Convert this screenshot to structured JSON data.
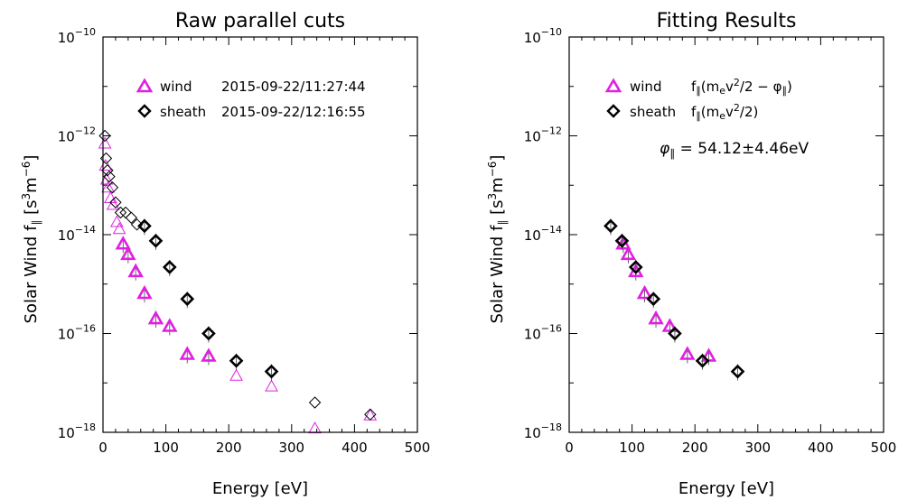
{
  "chart_data": [
    {
      "type": "scatter",
      "title": "Raw parallel cuts",
      "xlabel": "Energy [eV]",
      "ylabel": "Solar Wind f∥ [s³m⁻⁶]",
      "xlim": [
        0,
        500
      ],
      "ylim": [
        1e-18,
        1e-10
      ],
      "y_scale": "log",
      "grid": false,
      "legend_position": "top-right",
      "x_ticks": [
        "0",
        "100",
        "200",
        "300",
        "400",
        "500"
      ],
      "y_ticks": [
        {
          "base": "10",
          "exp": "−10",
          "value": 1e-10
        },
        {
          "base": "10",
          "exp": "−12",
          "value": 1e-12
        },
        {
          "base": "10",
          "exp": "−14",
          "value": 1e-14
        },
        {
          "base": "10",
          "exp": "−16",
          "value": 1e-16
        },
        {
          "base": "10",
          "exp": "−18",
          "value": 1e-18
        }
      ],
      "series": [
        {
          "name": "wind",
          "label_time": "2015-09-22/11:27:44",
          "marker": "triangle",
          "color": "#e020e0",
          "points": [
            {
              "x": 3,
              "y": 7e-13,
              "bold": false
            },
            {
              "x": 4,
              "y": 2.5e-13,
              "bold": false
            },
            {
              "x": 6,
              "y": 1.3e-13,
              "bold": false
            },
            {
              "x": 8,
              "y": 9e-14,
              "bold": false
            },
            {
              "x": 12,
              "y": 5.5e-14,
              "bold": false
            },
            {
              "x": 16,
              "y": 4e-14,
              "bold": false
            },
            {
              "x": 22,
              "y": 1.8e-14,
              "bold": false
            },
            {
              "x": 26,
              "y": 1.3e-14,
              "bold": false
            },
            {
              "x": 32,
              "y": 6.5e-15,
              "bold": true
            },
            {
              "x": 40,
              "y": 4e-15,
              "bold": true
            },
            {
              "x": 52,
              "y": 1.8e-15,
              "bold": true
            },
            {
              "x": 66,
              "y": 6.5e-16,
              "bold": true
            },
            {
              "x": 84,
              "y": 2e-16,
              "bold": true
            },
            {
              "x": 106,
              "y": 1.4e-16,
              "bold": true
            },
            {
              "x": 134,
              "y": 3.8e-17,
              "bold": true
            },
            {
              "x": 168,
              "y": 3.5e-17,
              "bold": true
            },
            {
              "x": 212,
              "y": 1.4e-17,
              "bold": false
            },
            {
              "x": 268,
              "y": 8.5e-18,
              "bold": false
            },
            {
              "x": 337,
              "y": 1.2e-18,
              "bold": false
            },
            {
              "x": 425,
              "y": 2.2e-18,
              "bold": false
            }
          ]
        },
        {
          "name": "sheath",
          "label_time": "2015-09-22/12:16:55",
          "marker": "diamond",
          "color": "#000000",
          "points": [
            {
              "x": 3,
              "y": 1e-12,
              "bold": false
            },
            {
              "x": 5,
              "y": 3.5e-13,
              "bold": false
            },
            {
              "x": 7,
              "y": 2e-13,
              "bold": false
            },
            {
              "x": 10,
              "y": 1.5e-13,
              "bold": false
            },
            {
              "x": 15,
              "y": 9e-14,
              "bold": false
            },
            {
              "x": 20,
              "y": 4.5e-14,
              "bold": false
            },
            {
              "x": 28,
              "y": 2.8e-14,
              "bold": false
            },
            {
              "x": 36,
              "y": 2.8e-14,
              "bold": false
            },
            {
              "x": 45,
              "y": 2.2e-14,
              "bold": false
            },
            {
              "x": 54,
              "y": 1.6e-14,
              "bold": false
            },
            {
              "x": 66,
              "y": 1.5e-14,
              "bold": true
            },
            {
              "x": 84,
              "y": 7.5e-15,
              "bold": true
            },
            {
              "x": 106,
              "y": 2.2e-15,
              "bold": true
            },
            {
              "x": 134,
              "y": 5e-16,
              "bold": true
            },
            {
              "x": 168,
              "y": 1e-16,
              "bold": true
            },
            {
              "x": 212,
              "y": 2.8e-17,
              "bold": true
            },
            {
              "x": 268,
              "y": 1.7e-17,
              "bold": true
            },
            {
              "x": 337,
              "y": 4e-18,
              "bold": false
            },
            {
              "x": 425,
              "y": 2.3e-18,
              "bold": false
            }
          ]
        }
      ]
    },
    {
      "type": "scatter",
      "title": "Fitting Results",
      "xlabel": "Energy [eV]",
      "ylabel": "Solar Wind f∥ [s³m⁻⁶]",
      "xlim": [
        0,
        500
      ],
      "ylim": [
        1e-18,
        1e-10
      ],
      "y_scale": "log",
      "grid": false,
      "legend_position": "top-right",
      "annotation": "φ∥ = 54.12±4.46eV",
      "x_ticks": [
        "0",
        "100",
        "200",
        "300",
        "400",
        "500"
      ],
      "y_ticks": [
        {
          "base": "10",
          "exp": "−10",
          "value": 1e-10
        },
        {
          "base": "10",
          "exp": "−12",
          "value": 1e-12
        },
        {
          "base": "10",
          "exp": "−14",
          "value": 1e-14
        },
        {
          "base": "10",
          "exp": "−16",
          "value": 1e-16
        },
        {
          "base": "10",
          "exp": "−18",
          "value": 1e-18
        }
      ],
      "series": [
        {
          "name": "wind",
          "label_formula": "f∥(mev²/2 − φ∥)",
          "marker": "triangle",
          "color": "#e020e0",
          "points": [
            {
              "x": 86,
              "y": 6.5e-15,
              "bold": true
            },
            {
              "x": 94,
              "y": 4e-15,
              "bold": true
            },
            {
              "x": 106,
              "y": 1.8e-15,
              "bold": true
            },
            {
              "x": 120,
              "y": 6.5e-16,
              "bold": true
            },
            {
              "x": 138,
              "y": 2e-16,
              "bold": true
            },
            {
              "x": 160,
              "y": 1.4e-16,
              "bold": true
            },
            {
              "x": 188,
              "y": 3.8e-17,
              "bold": true
            },
            {
              "x": 222,
              "y": 3.5e-17,
              "bold": true
            }
          ]
        },
        {
          "name": "sheath",
          "label_formula": "f∥(mev²/2)",
          "marker": "diamond",
          "color": "#000000",
          "points": [
            {
              "x": 66,
              "y": 1.5e-14,
              "bold": true
            },
            {
              "x": 84,
              "y": 7.5e-15,
              "bold": true
            },
            {
              "x": 106,
              "y": 2.2e-15,
              "bold": true
            },
            {
              "x": 134,
              "y": 5e-16,
              "bold": true
            },
            {
              "x": 168,
              "y": 1e-16,
              "bold": true
            },
            {
              "x": 212,
              "y": 2.8e-17,
              "bold": true
            },
            {
              "x": 268,
              "y": 1.7e-17,
              "bold": true
            }
          ]
        }
      ]
    }
  ]
}
